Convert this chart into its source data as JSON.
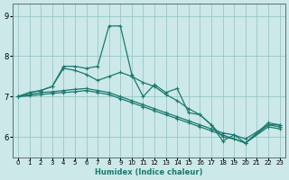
{
  "xlabel": "Humidex (Indice chaleur)",
  "bg_color": "#cce8e8",
  "grid_color": "#90c0c0",
  "line_color": "#1a7a6e",
  "markersize": 2.5,
  "linewidth": 0.9,
  "xlim": [
    -0.5,
    23.5
  ],
  "ylim": [
    5.5,
    9.3
  ],
  "yticks": [
    6,
    7,
    8,
    9
  ],
  "xticks": [
    0,
    1,
    2,
    3,
    4,
    5,
    6,
    7,
    8,
    9,
    10,
    11,
    12,
    13,
    14,
    15,
    16,
    17,
    18,
    19,
    20,
    21,
    22,
    23
  ],
  "series": [
    [
      7.0,
      7.1,
      7.15,
      7.25,
      7.75,
      7.75,
      7.7,
      7.75,
      8.75,
      8.75,
      7.55,
      7.0,
      7.3,
      7.1,
      7.2,
      6.6,
      6.55,
      6.3,
      5.9,
      6.05,
      5.85,
      null,
      6.3,
      6.3
    ],
    [
      7.0,
      7.1,
      7.15,
      7.25,
      7.7,
      7.65,
      7.55,
      7.4,
      7.5,
      7.6,
      7.5,
      7.35,
      7.25,
      7.05,
      6.9,
      6.7,
      6.55,
      6.3,
      6.0,
      5.95,
      5.85,
      null,
      6.35,
      6.3
    ],
    [
      7.0,
      7.05,
      7.1,
      7.12,
      7.15,
      7.18,
      7.2,
      7.15,
      7.1,
      7.0,
      6.9,
      6.8,
      6.7,
      6.6,
      6.5,
      6.4,
      6.3,
      6.2,
      6.1,
      6.05,
      5.95,
      null,
      6.3,
      6.25
    ],
    [
      7.0,
      7.02,
      7.05,
      7.08,
      7.1,
      7.12,
      7.15,
      7.1,
      7.05,
      6.95,
      6.85,
      6.75,
      6.65,
      6.55,
      6.45,
      6.35,
      6.25,
      6.15,
      6.05,
      5.95,
      5.85,
      null,
      6.25,
      6.2
    ]
  ]
}
